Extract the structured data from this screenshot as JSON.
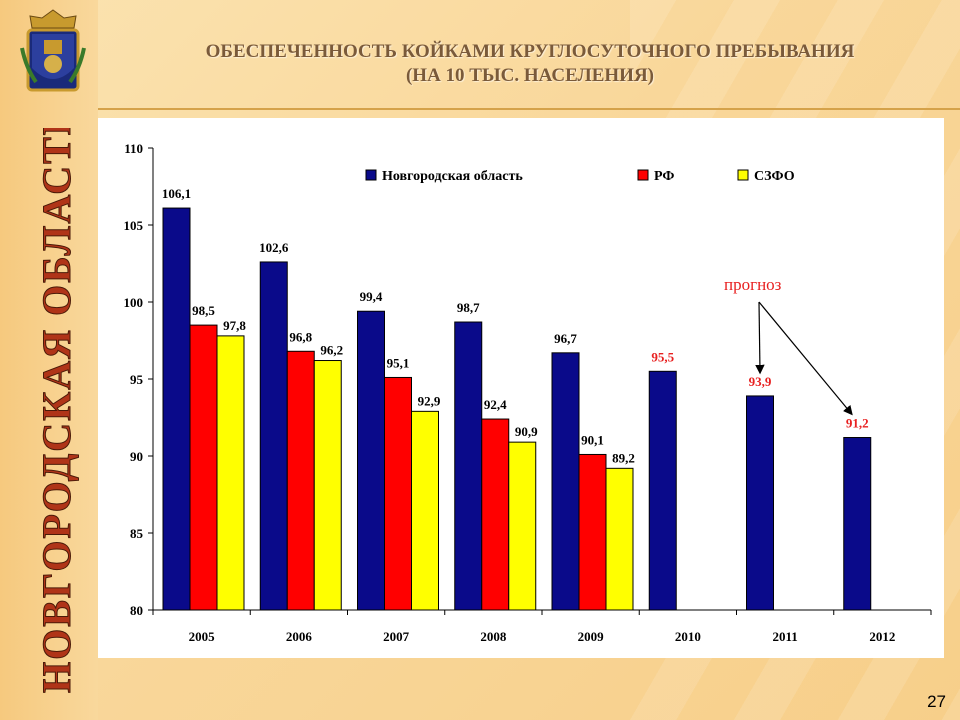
{
  "slide": {
    "title_line1": "ОБЕСПЕЧЕННОСТЬ КОЙКАМИ КРУГЛОСУТОЧНОГО ПРЕБЫВАНИЯ",
    "title_line2": "(НА 10 ТЫС. НАСЕЛЕНИЯ)",
    "vertical_text": "НОВГОРОДСКАЯ ОБЛАСТЬ",
    "page_number": "27"
  },
  "colors": {
    "novgorod": "#0a0a8a",
    "rf": "#ff0000",
    "szfo": "#ffff00",
    "forecast_label": "#e82020"
  },
  "chart_data": {
    "type": "bar",
    "categories": [
      "2005",
      "2006",
      "2007",
      "2008",
      "2009",
      "2010",
      "2011",
      "2012"
    ],
    "series": [
      {
        "name": "Новгородская область",
        "values": [
          106.1,
          102.6,
          99.4,
          98.7,
          96.7,
          95.5,
          93.9,
          91.2
        ],
        "labels": [
          "106,1",
          "102,6",
          "99,4",
          "98,7",
          "96,7",
          "95,5",
          "93,9",
          "91,2"
        ]
      },
      {
        "name": "РФ",
        "values": [
          98.5,
          96.8,
          95.1,
          92.4,
          90.1,
          null,
          null,
          null
        ],
        "labels": [
          "98,5",
          "96,8",
          "95,1",
          "92,4",
          "90,1",
          "",
          "",
          ""
        ]
      },
      {
        "name": "СЗФО",
        "values": [
          97.8,
          96.2,
          92.9,
          90.9,
          89.2,
          null,
          null,
          null
        ],
        "labels": [
          "97,8",
          "96,2",
          "92,9",
          "90,9",
          "89,2",
          "",
          "",
          ""
        ]
      }
    ],
    "ylim": [
      80,
      110
    ],
    "yticks": [
      "80",
      "85",
      "90",
      "95",
      "100",
      "105",
      "110"
    ],
    "legend_position": "top",
    "grid": false,
    "annotation": "прогноз",
    "forecast_years": [
      "2010",
      "2011",
      "2012"
    ]
  }
}
